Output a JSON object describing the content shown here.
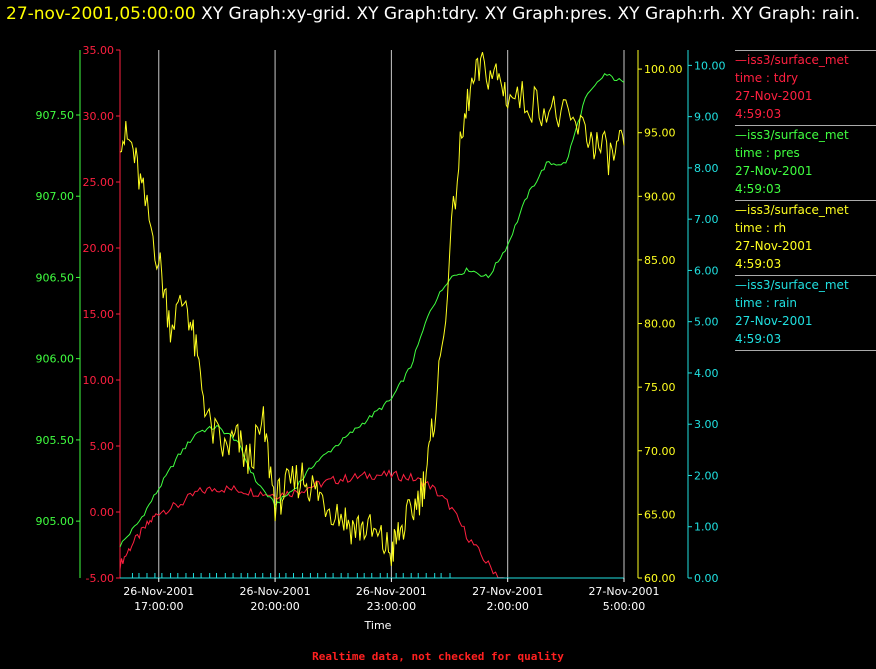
{
  "header": {
    "timestamp": "27-nov-2001,05:00:00",
    "title": "XY Graph:xy-grid.  XY Graph:tdry.  XY Graph:pres.  XY Graph:rh.  XY Graph: rain."
  },
  "footer": "Realtime data, not checked for quality",
  "colors": {
    "tdry": "#ff2040",
    "pres": "#40ff40",
    "rh": "#ffff20",
    "rain": "#20e0e0",
    "grid": "#c8c8c8",
    "axis": "#ffffff"
  },
  "legend": [
    {
      "key": "tdry",
      "source": "—iss3/surface_met",
      "field": "time : tdry",
      "date": "27-Nov-2001",
      "time": "4:59:03"
    },
    {
      "key": "pres",
      "source": "—iss3/surface_met",
      "field": "time : pres",
      "date": "27-Nov-2001",
      "time": "4:59:03"
    },
    {
      "key": "rh",
      "source": "—iss3/surface_met",
      "field": "time : rh",
      "date": "27-Nov-2001",
      "time": "4:59:03"
    },
    {
      "key": "rain",
      "source": "—iss3/surface_met",
      "field": "time : rain",
      "date": "27-Nov-2001",
      "time": "4:59:03"
    }
  ],
  "chart_data": {
    "type": "line",
    "xlabel": "Time",
    "xlim": [
      "26-Nov-2001 16:00:00",
      "27-Nov-2001 05:00:00"
    ],
    "x_ticks": [
      {
        "date": "26-Nov-2001",
        "time": "17:00:00",
        "hour": 17
      },
      {
        "date": "26-Nov-2001",
        "time": "20:00:00",
        "hour": 20
      },
      {
        "date": "26-Nov-2001",
        "time": "23:00:00",
        "hour": 23
      },
      {
        "date": "27-Nov-2001",
        "time": "2:00:00",
        "hour": 26
      },
      {
        "date": "27-Nov-2001",
        "time": "5:00:00",
        "hour": 29
      }
    ],
    "grid": true,
    "axes": {
      "tdry": {
        "min": -5,
        "max": 35,
        "ticks": [
          "-5.00",
          "0.00",
          "5.00",
          "10.00",
          "15.00",
          "20.00",
          "25.00",
          "30.00",
          "35.00"
        ]
      },
      "pres": {
        "min": 904.65,
        "max": 907.9,
        "ticks": [
          "905.00",
          "905.50",
          "906.00",
          "906.50",
          "907.00",
          "907.50"
        ]
      },
      "rh": {
        "min": 60,
        "max": 101.5,
        "ticks": [
          "60.00",
          "65.00",
          "70.00",
          "75.00",
          "80.00",
          "85.00",
          "90.00",
          "95.00",
          "100.00"
        ]
      },
      "rain": {
        "min": 0,
        "max": 10.3,
        "ticks": [
          "0.00",
          "1.00",
          "2.00",
          "3.00",
          "4.00",
          "5.00",
          "6.00",
          "7.00",
          "8.00",
          "9.00",
          "10.00"
        ]
      }
    },
    "series": [
      {
        "name": "tdry",
        "x": [
          16.0,
          16.3,
          16.7,
          17.0,
          17.5,
          18.0,
          18.5,
          19.0,
          19.5,
          20.0,
          20.5,
          21.0,
          21.5,
          22.0,
          22.5,
          23.0,
          23.5,
          24.0,
          24.5,
          25.0,
          25.5,
          26.0
        ],
        "y": [
          -4.0,
          -2.5,
          -1.0,
          0.0,
          0.5,
          1.5,
          1.8,
          1.7,
          1.5,
          1.3,
          1.5,
          2.0,
          2.4,
          2.6,
          2.8,
          2.8,
          2.6,
          2.0,
          0.5,
          -2.0,
          -4.0,
          -5.5
        ]
      },
      {
        "name": "pres",
        "x": [
          16.0,
          16.5,
          17.0,
          17.5,
          18.0,
          18.5,
          19.0,
          19.5,
          20.0,
          20.5,
          21.0,
          21.5,
          22.0,
          22.5,
          23.0,
          23.5,
          24.0,
          24.5,
          25.0,
          25.5,
          26.0,
          26.5,
          27.0,
          27.5,
          28.0,
          28.5,
          29.0
        ],
        "y": [
          904.85,
          905.0,
          905.2,
          905.4,
          905.55,
          905.58,
          905.5,
          905.25,
          905.1,
          905.2,
          905.35,
          905.45,
          905.55,
          905.65,
          905.75,
          905.95,
          906.3,
          906.5,
          906.55,
          906.5,
          906.7,
          907.0,
          907.2,
          907.2,
          907.6,
          907.75,
          907.7
        ]
      },
      {
        "name": "rh",
        "x": [
          16.0,
          16.3,
          16.6,
          17.0,
          17.3,
          17.7,
          18.0,
          18.3,
          18.7,
          19.0,
          19.3,
          19.7,
          20.0,
          20.3,
          20.7,
          21.0,
          21.3,
          21.7,
          22.0,
          22.3,
          22.7,
          23.0,
          23.2,
          23.5,
          23.8,
          24.0,
          24.3,
          24.7,
          25.0,
          25.3,
          25.7,
          26.0,
          26.5,
          27.0,
          27.5,
          28.0,
          28.3,
          28.7,
          29.0
        ],
        "y": [
          95.0,
          94.0,
          90.0,
          85.0,
          80.0,
          82.0,
          77.0,
          72.0,
          70.0,
          71.0,
          69.0,
          72.0,
          66.0,
          67.0,
          68.0,
          67.0,
          66.0,
          65.0,
          64.0,
          64.0,
          63.0,
          62.0,
          63.5,
          65.0,
          67.0,
          70.0,
          78.0,
          92.0,
          98.0,
          100.0,
          99.5,
          98.0,
          97.5,
          97.0,
          96.0,
          95.0,
          94.0,
          93.0,
          94.0
        ]
      },
      {
        "name": "rain",
        "x": [
          16.0,
          29.0
        ],
        "y": [
          0.0,
          0.0
        ]
      }
    ]
  }
}
